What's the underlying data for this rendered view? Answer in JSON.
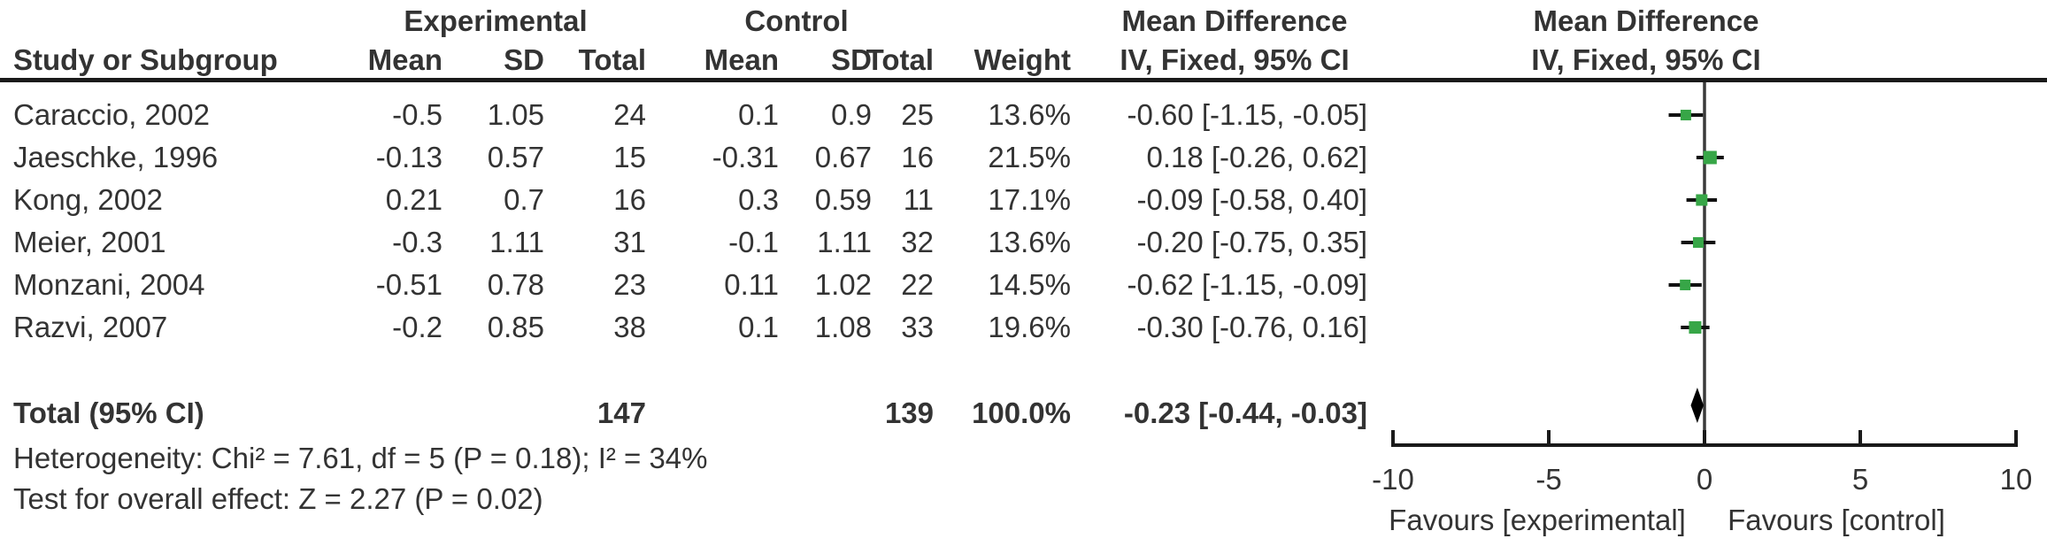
{
  "colors": {
    "marker_green": "#37A647",
    "text": "#333333",
    "line": "#1a1a1a",
    "zero_line": "#3a3a3a",
    "diamond": "#000000"
  },
  "table": {
    "group_headers": {
      "experimental": "Experimental",
      "control": "Control"
    },
    "columns": {
      "study": "Study or Subgroup",
      "mean": "Mean",
      "sd": "SD",
      "total": "Total",
      "weight": "Weight",
      "md": "Mean Difference",
      "iv": "IV, Fixed, 95% CI"
    },
    "total_row": {
      "label": "Total (95% CI)",
      "exp_total": "147",
      "ctrl_total": "139",
      "weight": "100.0%",
      "ci_text": "-0.23 [-0.44, -0.03]"
    },
    "footer": {
      "heterogeneity": "Heterogeneity: Chi² = 7.61, df = 5 (P = 0.18); I² = 34%",
      "overall_effect": "Test for overall effect: Z = 2.27 (P = 0.02)"
    }
  },
  "chart_data": {
    "type": "forest",
    "effect_measure": "Mean Difference, IV, Fixed, 95% CI",
    "studies": [
      {
        "name": "Caraccio, 2002",
        "exp_mean": "-0.5",
        "exp_sd": "1.05",
        "exp_total": "24",
        "ctrl_mean": "0.1",
        "ctrl_sd": "0.9",
        "ctrl_total": "25",
        "weight": "13.6%",
        "weight_pct": 13.6,
        "md": -0.6,
        "ci_lo": -1.15,
        "ci_hi": -0.05,
        "ci_text": "-0.60 [-1.15, -0.05]"
      },
      {
        "name": "Jaeschke, 1996",
        "exp_mean": "-0.13",
        "exp_sd": "0.57",
        "exp_total": "15",
        "ctrl_mean": "-0.31",
        "ctrl_sd": "0.67",
        "ctrl_total": "16",
        "weight": "21.5%",
        "weight_pct": 21.5,
        "md": 0.18,
        "ci_lo": -0.26,
        "ci_hi": 0.62,
        "ci_text": "0.18 [-0.26, 0.62]"
      },
      {
        "name": "Kong, 2002",
        "exp_mean": "0.21",
        "exp_sd": "0.7",
        "exp_total": "16",
        "ctrl_mean": "0.3",
        "ctrl_sd": "0.59",
        "ctrl_total": "11",
        "weight": "17.1%",
        "weight_pct": 17.1,
        "md": -0.09,
        "ci_lo": -0.58,
        "ci_hi": 0.4,
        "ci_text": "-0.09 [-0.58, 0.40]"
      },
      {
        "name": "Meier, 2001",
        "exp_mean": "-0.3",
        "exp_sd": "1.11",
        "exp_total": "31",
        "ctrl_mean": "-0.1",
        "ctrl_sd": "1.11",
        "ctrl_total": "32",
        "weight": "13.6%",
        "weight_pct": 13.6,
        "md": -0.2,
        "ci_lo": -0.75,
        "ci_hi": 0.35,
        "ci_text": "-0.20 [-0.75, 0.35]"
      },
      {
        "name": "Monzani, 2004",
        "exp_mean": "-0.51",
        "exp_sd": "0.78",
        "exp_total": "23",
        "ctrl_mean": "0.11",
        "ctrl_sd": "1.02",
        "ctrl_total": "22",
        "weight": "14.5%",
        "weight_pct": 14.5,
        "md": -0.62,
        "ci_lo": -1.15,
        "ci_hi": -0.09,
        "ci_text": "-0.62 [-1.15, -0.09]"
      },
      {
        "name": "Razvi, 2007",
        "exp_mean": "-0.2",
        "exp_sd": "0.85",
        "exp_total": "38",
        "ctrl_mean": "0.1",
        "ctrl_sd": "1.08",
        "ctrl_total": "33",
        "weight": "19.6%",
        "weight_pct": 19.6,
        "md": -0.3,
        "ci_lo": -0.76,
        "ci_hi": 0.16,
        "ci_text": "-0.30 [-0.76, 0.16]"
      }
    ],
    "total": {
      "md": -0.23,
      "ci_lo": -0.44,
      "ci_hi": -0.03
    },
    "axis": {
      "min": -10,
      "max": 10,
      "ticks": [
        -10,
        -5,
        0,
        5,
        10
      ],
      "left_label": "Favours [experimental]",
      "right_label": "Favours [control]"
    }
  }
}
